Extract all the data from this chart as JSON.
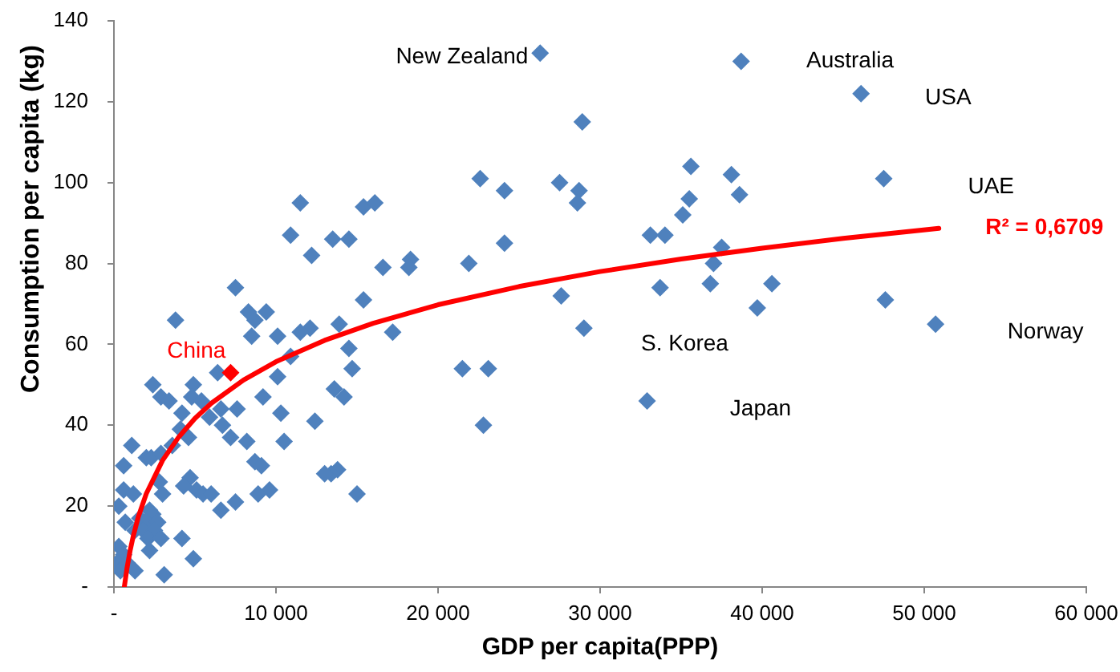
{
  "chart_data": {
    "type": "scatter",
    "xlabel": "GDP per capita(PPP)",
    "ylabel": "Consumption per capita (kg)",
    "xlim": [
      0,
      60000
    ],
    "ylim": [
      0,
      140
    ],
    "xticks": [
      {
        "value": 0,
        "label": "-"
      },
      {
        "value": 10000,
        "label": "10 000"
      },
      {
        "value": 20000,
        "label": "20 000"
      },
      {
        "value": 30000,
        "label": "30 000"
      },
      {
        "value": 40000,
        "label": "40 000"
      },
      {
        "value": 50000,
        "label": "50 000"
      },
      {
        "value": 60000,
        "label": "60 000"
      }
    ],
    "yticks": [
      {
        "value": 0,
        "label": "-"
      },
      20,
      40,
      60,
      80,
      100,
      120,
      140
    ],
    "marker": "diamond",
    "legend": false,
    "grid": false,
    "series": [
      {
        "color": "#4f81bd",
        "x": [
          26300,
          38700,
          46100,
          28900,
          35600,
          38100,
          47500,
          22600,
          27500,
          24100,
          28700,
          38600,
          35500,
          28600,
          11500,
          15400,
          16100,
          35100,
          10900,
          33100,
          34000,
          13500,
          14500,
          24100,
          37500,
          12200,
          18300,
          21900,
          37000,
          16600,
          18200,
          33700,
          36800,
          40600,
          7500,
          27600,
          15400,
          47600,
          39700,
          8300,
          9400,
          8700,
          3800,
          50700,
          13900,
          12100,
          17200,
          29000,
          11500,
          8500,
          10100,
          14500,
          10900,
          6400,
          14700,
          21500,
          23100,
          2400,
          4900,
          10100,
          13600,
          2900,
          4800,
          3400,
          5400,
          9200,
          14200,
          32900,
          7600,
          4200,
          6600,
          5900,
          10300,
          12400,
          6700,
          22800,
          7200,
          4600,
          4100,
          10500,
          8200,
          1100,
          3600,
          600,
          2000,
          2300,
          2900,
          8700,
          9100,
          13800,
          13400,
          13000,
          4700,
          2800,
          9600,
          4300,
          5100,
          5500,
          3000,
          600,
          1200,
          8900,
          6000,
          15000,
          7500,
          6600,
          300,
          2200,
          2400,
          1600,
          700,
          2000,
          2700,
          1300,
          1800,
          2500,
          2100,
          2900,
          4200,
          300,
          2200,
          600,
          4900,
          200,
          800,
          400,
          1300,
          3100
        ],
        "values": [
          132,
          130,
          122,
          115,
          104,
          102,
          101,
          101,
          100,
          98,
          98,
          97,
          96,
          95,
          95,
          94,
          95,
          92,
          87,
          87,
          87,
          86,
          86,
          85,
          84,
          82,
          81,
          80,
          80,
          79,
          79,
          74,
          75,
          75,
          74,
          72,
          71,
          71,
          69,
          68,
          68,
          66,
          66,
          65,
          65,
          64,
          63,
          64,
          63,
          62,
          62,
          59,
          57,
          53,
          54,
          54,
          54,
          50,
          50,
          52,
          49,
          47,
          47,
          46,
          46,
          47,
          47,
          46,
          44,
          43,
          44,
          42,
          43,
          41,
          40,
          40,
          37,
          37,
          39,
          36,
          36,
          35,
          35,
          30,
          32,
          32,
          33,
          31,
          30,
          29,
          28,
          28,
          27,
          26,
          24,
          25,
          24,
          23,
          23,
          24,
          23,
          23,
          23,
          23,
          21,
          19,
          20,
          19,
          18,
          17,
          16,
          16,
          16,
          14,
          14,
          14,
          12,
          12,
          12,
          10,
          9,
          8,
          7,
          6,
          6,
          4,
          4,
          3
        ]
      },
      {
        "type": "line",
        "marker": "none",
        "name": "R² = 0,6709",
        "color": "#ff0000",
        "x": [
          640,
          800,
          1000,
          1200,
          1500,
          2000,
          3000,
          4000,
          5000,
          6000,
          8000,
          10000,
          13000,
          16000,
          20000,
          25000,
          30000,
          35000,
          40000,
          45000,
          50900
        ],
        "values": [
          0,
          4.5,
          9,
          12.7,
          17.3,
          23.1,
          31.3,
          37.1,
          41.7,
          45.4,
          51.2,
          55.7,
          61,
          65.2,
          69.8,
          74.3,
          78,
          81.1,
          83.8,
          86.2,
          88.7
        ]
      },
      {
        "name": "China",
        "color": "#ff0000",
        "x": [
          7200
        ],
        "values": [
          53
        ]
      }
    ],
    "annotations": [
      "New Zealand",
      "Australia",
      "USA",
      "UAE",
      "S. Korea",
      "Japan",
      "Norway"
    ]
  }
}
